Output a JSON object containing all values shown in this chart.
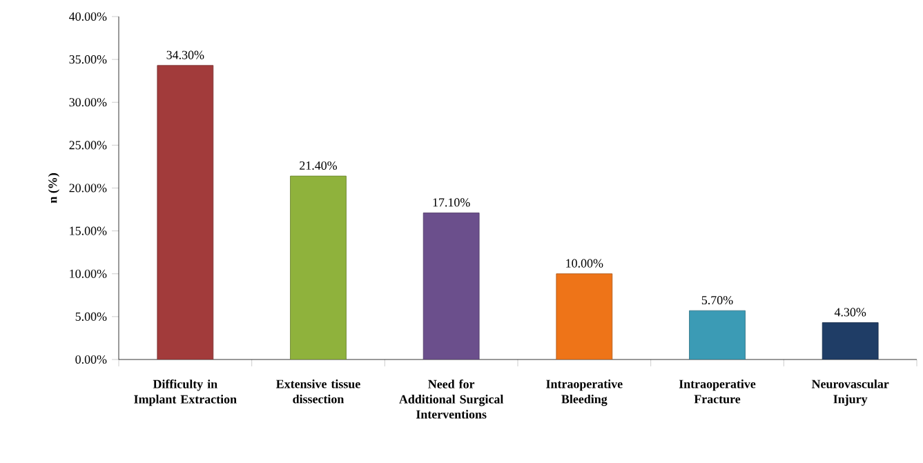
{
  "chart_data": {
    "type": "bar",
    "ylabel": "n (%)",
    "categories": [
      "Difficulty in Implant Extraction",
      "Extensive tissue dissection",
      "Need for Additional Surgical Interventions",
      "Intraoperative Bleeding",
      "Intraoperative Fracture",
      "Neurovascular Injury"
    ],
    "values": [
      34.3,
      21.4,
      17.1,
      10.0,
      5.7,
      4.3
    ],
    "value_labels": [
      "34.30%",
      "21.40%",
      "17.10%",
      "10.00%",
      "5.70%",
      "4.30%"
    ],
    "colors": [
      "#a23b3b",
      "#8fb23c",
      "#6b4f8c",
      "#ee7418",
      "#3b9bb5",
      "#1f3d66"
    ],
    "ylim": [
      0,
      40
    ],
    "yticks": [
      {
        "value": 0,
        "label": "0.00%"
      },
      {
        "value": 5,
        "label": "5.00%"
      },
      {
        "value": 10,
        "label": "10.00%"
      },
      {
        "value": 15,
        "label": "15.00%"
      },
      {
        "value": 20,
        "label": "20.00%"
      },
      {
        "value": 25,
        "label": "25.00%"
      },
      {
        "value": 30,
        "label": "30.00%"
      },
      {
        "value": 35,
        "label": "35.00%"
      },
      {
        "value": 40,
        "label": "40.00%"
      }
    ],
    "grid": false
  }
}
